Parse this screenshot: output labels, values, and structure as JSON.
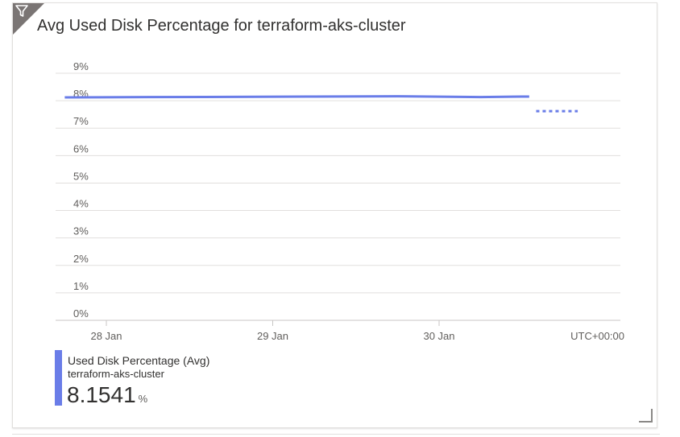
{
  "tile": {
    "title": "Avg Used Disk Percentage for terraform-aks-cluster",
    "filter_icon": "filter-icon"
  },
  "chart_data": {
    "type": "line",
    "title": "Avg Used Disk Percentage for terraform-aks-cluster",
    "xlabel": "",
    "ylabel": "",
    "ylim": [
      0,
      9
    ],
    "y_ticks": [
      "0%",
      "1%",
      "2%",
      "3%",
      "4%",
      "5%",
      "6%",
      "7%",
      "8%",
      "9%"
    ],
    "x_ticks": [
      "28 Jan",
      "29 Jan",
      "30 Jan"
    ],
    "timezone_label": "UTC+00:00",
    "grid": true,
    "series": [
      {
        "name": "Used Disk Percentage (Avg)",
        "color": "#6a7de8",
        "x": [
          "27 Jan 18:00",
          "28 Jan 06:00",
          "28 Jan 18:00",
          "29 Jan 06:00",
          "29 Jan 18:00",
          "30 Jan 06:00",
          "30 Jan 12:00",
          "30 Jan 13:00",
          "30 Jan 14:00",
          "30 Jan 20:00"
        ],
        "values": [
          8.12,
          8.13,
          8.14,
          8.15,
          8.16,
          8.13,
          8.15,
          8.15,
          7.62,
          7.62
        ],
        "dashed_from_index": 8
      }
    ]
  },
  "legend": {
    "series_label": "Used Disk Percentage (Avg)",
    "resource": "terraform-aks-cluster",
    "value": "8.1541",
    "unit": "%",
    "color": "#6a7de8"
  }
}
